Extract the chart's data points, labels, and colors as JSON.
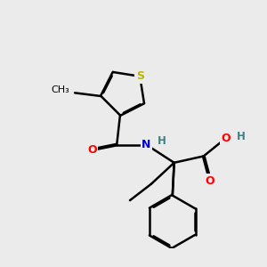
{
  "background_color": "#ebebeb",
  "atom_colors": {
    "S": "#b8b800",
    "N": "#0000cc",
    "O": "#ff0000",
    "C": "#000000",
    "H": "#408080"
  },
  "bond_color": "#000000",
  "bond_width": 1.8,
  "figsize": [
    3.0,
    3.0
  ],
  "dpi": 100
}
